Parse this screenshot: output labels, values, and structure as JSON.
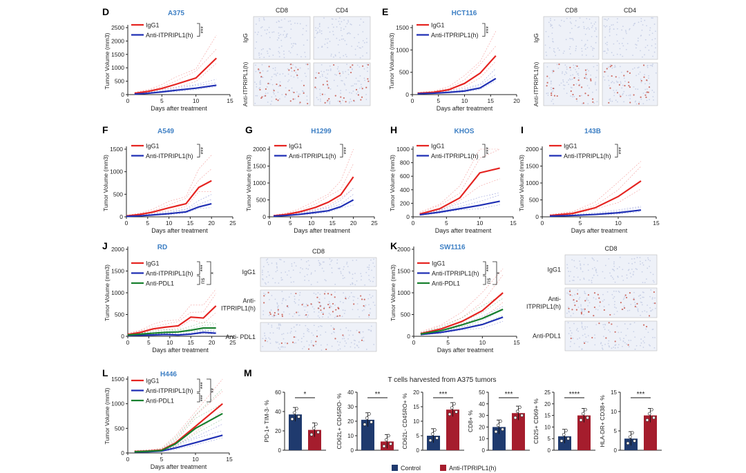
{
  "colors": {
    "igg1": "#e52421",
    "anti": "#1f2fb4",
    "pdl1": "#17802e",
    "title": "#3d7fc4",
    "bar_control": "#1f3a6e",
    "bar_anti": "#a51d2d",
    "ihc_blue": "#c8d0e6",
    "ihc_red": "#c0392b"
  },
  "chart_data": [
    {
      "id": "D",
      "type": "line",
      "panel_letter": "D",
      "title": "A375",
      "xlabel": "Days after treatment",
      "ylabel": "Tumor Volume (mm3)",
      "xlim": [
        0,
        15
      ],
      "ylim": [
        0,
        2500
      ],
      "xticks": [
        "0",
        "5",
        "10",
        "15"
      ],
      "yticks": [
        "0",
        "500",
        "1000",
        "1500",
        "2000",
        "2500"
      ],
      "series": [
        {
          "name": "IgG1",
          "x": [
            1,
            3,
            5,
            7,
            10,
            13
          ],
          "y": [
            50,
            120,
            230,
            380,
            620,
            1360
          ]
        },
        {
          "name": "Anti-ITPRIPL1(h)",
          "x": [
            1,
            3,
            5,
            7,
            10,
            13
          ],
          "y": [
            20,
            50,
            100,
            160,
            240,
            350
          ]
        }
      ],
      "significance": [
        "***"
      ]
    },
    {
      "id": "E",
      "type": "line",
      "panel_letter": "E",
      "title": "HCT116",
      "xlabel": "Days after treatment",
      "ylabel": "Tumor Volume (mm3)",
      "xlim": [
        0,
        20
      ],
      "ylim": [
        0,
        1500
      ],
      "xticks": [
        "0",
        "5",
        "10",
        "15",
        "20"
      ],
      "yticks": [
        "0",
        "500",
        "1000",
        "1500"
      ],
      "series": [
        {
          "name": "IgG1",
          "x": [
            1,
            4,
            7,
            10,
            13,
            16
          ],
          "y": [
            30,
            50,
            110,
            250,
            480,
            870
          ]
        },
        {
          "name": "Anti-ITPRIPL1(h)",
          "x": [
            1,
            4,
            7,
            10,
            13,
            16
          ],
          "y": [
            20,
            30,
            50,
            80,
            150,
            360
          ]
        }
      ],
      "significance": [
        "***"
      ]
    },
    {
      "id": "F",
      "type": "line",
      "panel_letter": "F",
      "title": "A549",
      "xlabel": "Days after treatment",
      "ylabel": "Tumor Volume (mm3)",
      "xlim": [
        0,
        25
      ],
      "ylim": [
        0,
        1500
      ],
      "xticks": [
        "0",
        "5",
        "10",
        "15",
        "20",
        "25"
      ],
      "yticks": [
        "0",
        "500",
        "1000",
        "1500"
      ],
      "series": [
        {
          "name": "IgG1",
          "x": [
            0,
            3,
            6,
            10,
            14,
            17,
            20
          ],
          "y": [
            20,
            50,
            100,
            200,
            290,
            650,
            800
          ]
        },
        {
          "name": "Anti-ITPRIPL1(h)",
          "x": [
            0,
            3,
            6,
            10,
            14,
            17,
            20
          ],
          "y": [
            10,
            20,
            40,
            70,
            110,
            220,
            290
          ]
        }
      ],
      "significance": [
        "***"
      ]
    },
    {
      "id": "G",
      "type": "line",
      "panel_letter": "G",
      "title": "H1299",
      "xlabel": "Days after treatment",
      "ylabel": "Tumor Volume (mm3)",
      "xlim": [
        0,
        25
      ],
      "ylim": [
        0,
        2000
      ],
      "xticks": [
        "0",
        "5",
        "10",
        "15",
        "20",
        "25"
      ],
      "yticks": [
        "0",
        "500",
        "1000",
        "1500",
        "2000"
      ],
      "series": [
        {
          "name": "IgG1",
          "x": [
            1,
            4,
            7,
            11,
            14,
            17,
            20
          ],
          "y": [
            30,
            70,
            140,
            280,
            430,
            650,
            1180
          ]
        },
        {
          "name": "Anti-ITPRIPL1(h)",
          "x": [
            1,
            4,
            7,
            11,
            14,
            17,
            20
          ],
          "y": [
            20,
            40,
            70,
            130,
            180,
            300,
            500
          ]
        }
      ],
      "significance": [
        "***"
      ]
    },
    {
      "id": "H",
      "type": "line",
      "panel_letter": "H",
      "title": "KHOS",
      "xlabel": "Days after treatment",
      "ylabel": "Tumor Volume (mm3)",
      "xlim": [
        0,
        15
      ],
      "ylim": [
        0,
        1000
      ],
      "xticks": [
        "0",
        "5",
        "10",
        "15"
      ],
      "yticks": [
        "0",
        "200",
        "400",
        "600",
        "800",
        "1000"
      ],
      "series": [
        {
          "name": "IgG1",
          "x": [
            1,
            4,
            7,
            10,
            13
          ],
          "y": [
            40,
            120,
            280,
            650,
            720
          ]
        },
        {
          "name": "Anti-ITPRIPL1(h)",
          "x": [
            1,
            4,
            7,
            10,
            13
          ],
          "y": [
            30,
            70,
            120,
            170,
            230
          ]
        }
      ],
      "significance": [
        "***"
      ]
    },
    {
      "id": "I",
      "type": "line",
      "panel_letter": "I",
      "title": "143B",
      "xlabel": "Days after treatment",
      "ylabel": "Tumor Volume (mm3)",
      "xlim": [
        0,
        15
      ],
      "ylim": [
        0,
        2000
      ],
      "xticks": [
        "0",
        "5",
        "10",
        "15"
      ],
      "yticks": [
        "0",
        "500",
        "1000",
        "1500",
        "2000"
      ],
      "series": [
        {
          "name": "IgG1",
          "x": [
            1,
            4,
            7,
            10,
            13
          ],
          "y": [
            40,
            100,
            270,
            600,
            1060
          ]
        },
        {
          "name": "Anti-ITPRIPL1(h)",
          "x": [
            1,
            4,
            7,
            10,
            13
          ],
          "y": [
            20,
            40,
            70,
            120,
            200
          ]
        }
      ],
      "significance": [
        "***"
      ]
    },
    {
      "id": "J",
      "type": "line",
      "panel_letter": "J",
      "title": "RD",
      "xlabel": "Days after treatment",
      "ylabel": "Tumor Volume (mm3)",
      "xlim": [
        0,
        25
      ],
      "ylim": [
        0,
        2000
      ],
      "xticks": [
        "0",
        "5",
        "10",
        "15",
        "20",
        "25"
      ],
      "yticks": [
        "0",
        "500",
        "1000",
        "1500",
        "2000"
      ],
      "series": [
        {
          "name": "IgG1",
          "x": [
            0,
            3,
            6,
            9,
            12,
            15,
            18,
            21
          ],
          "y": [
            40,
            90,
            170,
            210,
            240,
            440,
            420,
            700
          ]
        },
        {
          "name": "Anti-ITPRIPL1(h)",
          "x": [
            0,
            3,
            6,
            9,
            12,
            15,
            18,
            21
          ],
          "y": [
            20,
            25,
            30,
            40,
            30,
            50,
            90,
            70
          ]
        },
        {
          "name": "Anti-PDL1",
          "x": [
            0,
            3,
            6,
            9,
            12,
            15,
            18,
            21
          ],
          "y": [
            30,
            50,
            70,
            90,
            100,
            140,
            190,
            190
          ]
        }
      ],
      "significance": [
        "***",
        "ns",
        "*"
      ]
    },
    {
      "id": "K",
      "type": "line",
      "panel_letter": "K",
      "title": "SW1116",
      "xlabel": "Days after treatment",
      "ylabel": "Tumor Volume (mm3)",
      "xlim": [
        0,
        15
      ],
      "ylim": [
        0,
        2000
      ],
      "xticks": [
        "0",
        "5",
        "10",
        "15"
      ],
      "yticks": [
        "0",
        "500",
        "1000",
        "1500",
        "2000"
      ],
      "series": [
        {
          "name": "IgG1",
          "x": [
            1,
            4,
            7,
            10,
            13
          ],
          "y": [
            60,
            170,
            340,
            590,
            1000
          ]
        },
        {
          "name": "Anti-ITPRIPL1(h)",
          "x": [
            1,
            4,
            7,
            10,
            13
          ],
          "y": [
            40,
            90,
            170,
            270,
            440
          ]
        },
        {
          "name": "Anti-PDL1",
          "x": [
            1,
            4,
            7,
            10,
            13
          ],
          "y": [
            50,
            130,
            260,
            410,
            620
          ]
        }
      ],
      "significance": [
        "***",
        "ns",
        "*"
      ]
    },
    {
      "id": "L",
      "type": "line",
      "panel_letter": "L",
      "title": "H446",
      "xlabel": "Days after treatment",
      "ylabel": "Tumor Volume (mm3)",
      "xlim": [
        0,
        15
      ],
      "ylim": [
        0,
        1500
      ],
      "xticks": [
        "0",
        "5",
        "10",
        "15"
      ],
      "yticks": [
        "0",
        "500",
        "1000",
        "1500"
      ],
      "series": [
        {
          "name": "IgG1",
          "x": [
            1,
            3,
            5,
            7,
            10,
            14
          ],
          "y": [
            30,
            40,
            60,
            200,
            540,
            1000
          ]
        },
        {
          "name": "Anti-ITPRIPL1(h)",
          "x": [
            1,
            3,
            5,
            7,
            10,
            14
          ],
          "y": [
            20,
            25,
            40,
            100,
            210,
            360
          ]
        },
        {
          "name": "Anti-PDL1",
          "x": [
            1,
            3,
            5,
            7,
            10,
            14
          ],
          "y": [
            25,
            35,
            50,
            180,
            500,
            800
          ]
        }
      ],
      "significance": [
        "***",
        "***",
        "**"
      ]
    },
    {
      "id": "M",
      "type": "bar",
      "panel_letter": "M",
      "title": "T cells harvested from A375 tumors",
      "legend": [
        "Control",
        "Anti-ITPRIPL1(h)"
      ],
      "subplots": [
        {
          "ylabel": "PD-1+ TIM-3- %",
          "ylim": [
            0,
            60
          ],
          "yticks": [
            "0",
            "20",
            "40",
            "60"
          ],
          "values": [
            37,
            21
          ],
          "sig": "*"
        },
        {
          "ylabel": "CD62L+ CD45RO- %",
          "ylim": [
            0,
            40
          ],
          "yticks": [
            "0",
            "10",
            "20",
            "30",
            "40"
          ],
          "values": [
            21,
            6
          ],
          "sig": "**"
        },
        {
          "ylabel": "CD62L- CD45RO+ %",
          "ylim": [
            0,
            20
          ],
          "yticks": [
            "0",
            "5",
            "10",
            "15",
            "20"
          ],
          "values": [
            5,
            14
          ],
          "sig": "***"
        },
        {
          "ylabel": "CD8+ %",
          "ylim": [
            0,
            50
          ],
          "yticks": [
            "0",
            "10",
            "20",
            "30",
            "40",
            "50"
          ],
          "values": [
            20,
            32
          ],
          "sig": "***"
        },
        {
          "ylabel": "CD25+ CD69+ %",
          "ylim": [
            0,
            25
          ],
          "yticks": [
            "0",
            "5",
            "10",
            "15",
            "20",
            "25"
          ],
          "values": [
            6,
            15
          ],
          "sig": "****"
        },
        {
          "ylabel": "HLA-DR+ CD38+ %",
          "ylim": [
            0,
            15
          ],
          "yticks": [
            "0",
            "5",
            "10",
            "15"
          ],
          "values": [
            3,
            9
          ],
          "sig": "***"
        }
      ]
    }
  ],
  "ihc": [
    {
      "id": "D",
      "cols": [
        "CD8",
        "CD4"
      ],
      "rows": [
        "IgG",
        "Anti-ITPRIPL1(h)"
      ]
    },
    {
      "id": "E",
      "cols": [
        "CD8",
        "CD4"
      ],
      "rows": [
        "IgG",
        "Anti-ITPRIPL1(h)"
      ]
    },
    {
      "id": "J",
      "cols": [
        "CD8"
      ],
      "rows": [
        "IgG1",
        "Anti-ITPRIPL1(h)",
        "Anti- PDL1"
      ]
    },
    {
      "id": "K",
      "cols": [
        "CD8"
      ],
      "rows": [
        "IgG1",
        "Anti-ITPRIPL1(h)",
        "Anti-PDL1"
      ]
    }
  ]
}
